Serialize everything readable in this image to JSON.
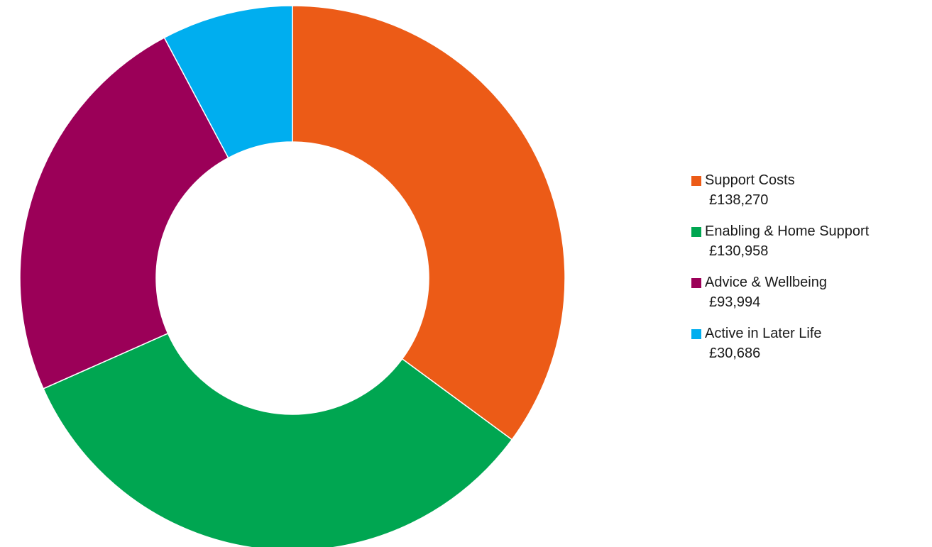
{
  "chart_data": {
    "type": "pie",
    "style": "donut",
    "title": "",
    "legend_position": "right",
    "slices": [
      {
        "label": "Support Costs",
        "value": 138270,
        "value_label": "£138,270",
        "color": "#EC5B17"
      },
      {
        "label": "Enabling & Home Support",
        "value": 130958,
        "value_label": "£130,958",
        "color": "#00A651"
      },
      {
        "label": "Advice & Wellbeing",
        "value": 93994,
        "value_label": "£93,994",
        "color": "#9B0058"
      },
      {
        "label": "Active in Later Life",
        "value": 30686,
        "value_label": "£30,686",
        "color": "#00AEEF"
      }
    ]
  }
}
